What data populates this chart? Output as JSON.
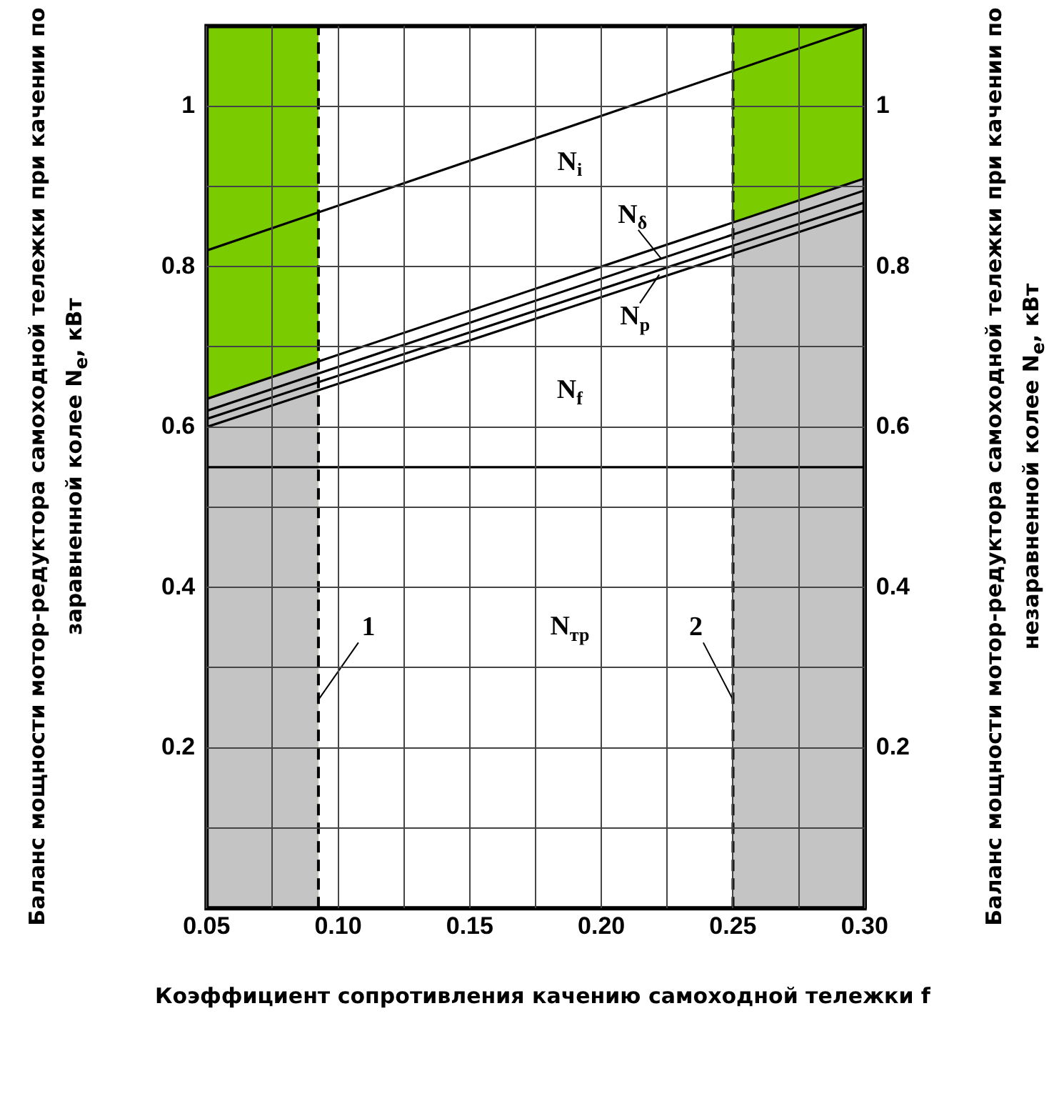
{
  "chart_data": {
    "type": "line",
    "xlabel": "Коэффициент сопротивления качению самоходной тележки f",
    "ylabel": "Баланс мощности мотор-редуктора самоходной тележки при качении по заравненной колее N$_{e}$, кВт",
    "y2label": "Баланс мощности мотор-редуктора самоходной тележки при качении по незаравненной колее N$_{e}$, кВт",
    "xlim": [
      0.05,
      0.3
    ],
    "xticks": [
      0.05,
      {
        "value": 0.075,
        "label": null
      },
      {
        "value": 0.1,
        "label": "0.10"
      },
      {
        "value": 0.125,
        "label": null
      },
      0.15,
      {
        "value": 0.175,
        "label": null
      },
      {
        "value": 0.2,
        "label": "0.20"
      },
      {
        "value": 0.225,
        "label": null
      },
      0.25,
      {
        "value": 0.275,
        "label": null
      },
      {
        "value": 0.3,
        "label": "0.30"
      }
    ],
    "ylim": [
      0,
      1.1
    ],
    "yticks": [
      {
        "value": 0.1,
        "label": null
      },
      0.2,
      {
        "value": 0.3,
        "label": null
      },
      0.4,
      {
        "value": 0.5,
        "label": null
      },
      0.6,
      {
        "value": 0.7,
        "label": null
      },
      0.8,
      {
        "value": 0.9,
        "label": null
      },
      1
    ],
    "y2lim": [
      0,
      1.1
    ],
    "y2ticks": [
      0.2,
      0.4,
      0.6,
      0.8,
      1
    ],
    "grid": true,
    "marker": "none",
    "line_style": "solid",
    "series": [
      {
        "type": "area",
        "color": "#c4c4c4",
        "x": [
          0.05,
          0.0925
        ],
        "values": [
          0.635,
          0.682
        ]
      },
      {
        "type": "area",
        "color": "#c4c4c4",
        "x": [
          0.25,
          0.3
        ],
        "values": [
          0.855,
          0.91
        ]
      },
      {
        "color": "#000000",
        "x": [
          0.05,
          0.3
        ],
        "values": [
          0.82,
          1.1
        ]
      },
      {
        "color": "#000000",
        "x": [
          0.05,
          0.3
        ],
        "values": [
          0.635,
          0.91
        ]
      },
      {
        "color": "#000000",
        "x": [
          0.05,
          0.3
        ],
        "values": [
          0.62,
          0.895
        ]
      },
      {
        "color": "#000000",
        "x": [
          0.05,
          0.3
        ],
        "values": [
          0.61,
          0.88
        ]
      },
      {
        "color": "#000000",
        "x": [
          0.05,
          0.3
        ],
        "values": [
          0.6,
          0.87
        ]
      },
      {
        "color": "#000000",
        "x": [
          0.05,
          0.3
        ],
        "values": [
          0.55,
          0.55
        ]
      }
    ],
    "bands": [
      {
        "axis": "x",
        "from": 0.05,
        "to": 0.0925,
        "color": "#7acc00"
      },
      {
        "axis": "x",
        "from": 0.25,
        "to": 0.3,
        "color": "#7acc00"
      }
    ],
    "ref_lines": [
      {
        "axis": "x",
        "value": 0.0925,
        "line_style": "dashed"
      },
      {
        "axis": "x",
        "value": 0.25,
        "line_style": "dashed"
      }
    ],
    "annotations": [
      "N$_{i}$",
      {
        "text": "N$_{δ}$",
        "x": 0.2227,
        "y": 0.81
      },
      {
        "text": "N$_{p}$",
        "x": 0.222,
        "y": 0.79
      },
      "N$_{f}$",
      "N$_{тр}$",
      {
        "text": "1",
        "x": 0.0925,
        "y": 0.26
      },
      {
        "text": "2",
        "x": 0.25,
        "y": 0.26
      }
    ]
  }
}
